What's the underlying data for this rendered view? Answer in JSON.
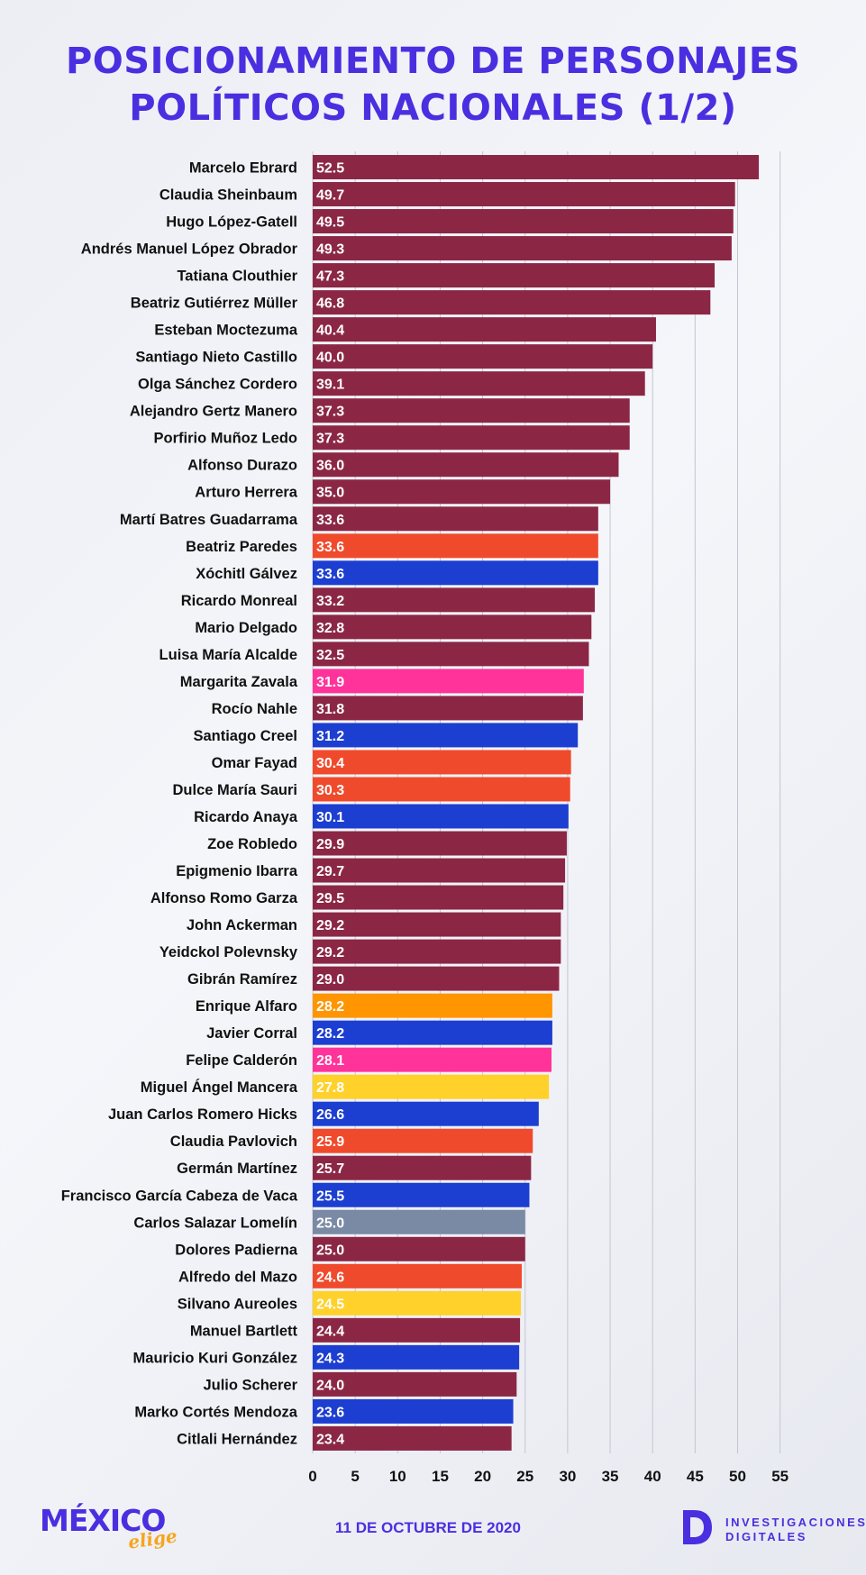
{
  "title_line1": "POSICIONAMIENTO DE PERSONAJES",
  "title_line2": "POLÍTICOS NACIONALES (1/2)",
  "footer_date": "11 DE OCTUBRE  DE 2020",
  "logo_left_word": "MÉXICO",
  "logo_left_script": "elige",
  "logo_right_mark": "D",
  "logo_right_line1": "INVESTIGACIONES",
  "logo_right_line2": "DIGITALES",
  "colors": {
    "title": "#4a2fe0",
    "default_bar": "#8b2745",
    "red": "#f04a2c",
    "blue": "#1c3ed1",
    "pink": "#ff3399",
    "orange": "#ff9500",
    "yellow": "#ffd12a",
    "gray": "#7a8aa5"
  },
  "chart_data": {
    "type": "bar",
    "orientation": "horizontal",
    "xlim": [
      0,
      55
    ],
    "xticks": [
      "0",
      "5",
      "10",
      "15",
      "20",
      "25",
      "30",
      "35",
      "40",
      "45",
      "50",
      "55"
    ],
    "grid": true,
    "categories": [
      "Marcelo Ebrard",
      "Claudia Sheinbaum",
      "Hugo López-Gatell",
      "Andrés Manuel López Obrador",
      "Tatiana Clouthier",
      "Beatriz Gutiérrez Müller",
      "Esteban Moctezuma",
      "Santiago Nieto Castillo",
      "Olga Sánchez Cordero",
      "Alejandro Gertz Manero",
      "Porfirio Muñoz Ledo",
      "Alfonso Durazo",
      "Arturo Herrera",
      "Martí Batres Guadarrama",
      "Beatriz Paredes",
      "Xóchitl Gálvez",
      "Ricardo Monreal",
      "Mario Delgado",
      "Luisa María Alcalde",
      "Margarita Zavala",
      "Rocío Nahle",
      "Santiago Creel",
      "Omar Fayad",
      "Dulce María Sauri",
      "Ricardo Anaya",
      "Zoe Robledo",
      "Epigmenio Ibarra",
      "Alfonso Romo Garza",
      "John Ackerman",
      "Yeidckol Polevnsky",
      "Gibrán Ramírez",
      "Enrique Alfaro",
      "Javier Corral",
      "Felipe Calderón",
      "Miguel Ángel Mancera",
      "Juan Carlos Romero Hicks",
      "Claudia Pavlovich",
      "Germán Martínez",
      "Francisco García Cabeza de Vaca",
      "Carlos Salazar Lomelín",
      "Dolores Padierna",
      "Alfredo del Mazo",
      "Silvano Aureoles",
      "Manuel Bartlett",
      "Mauricio Kuri González",
      "Julio Scherer",
      "Marko Cortés Mendoza",
      "Citlali Hernández"
    ],
    "values": [
      52.5,
      49.7,
      49.5,
      49.3,
      47.3,
      46.8,
      40.4,
      40.0,
      39.1,
      37.3,
      37.3,
      36.0,
      35.0,
      33.6,
      33.6,
      33.6,
      33.2,
      32.8,
      32.5,
      31.9,
      31.8,
      31.2,
      30.4,
      30.3,
      30.1,
      29.9,
      29.7,
      29.5,
      29.2,
      29.2,
      29.0,
      28.2,
      28.2,
      28.1,
      27.8,
      26.6,
      25.9,
      25.7,
      25.5,
      25.0,
      25.0,
      24.6,
      24.5,
      24.4,
      24.3,
      24.0,
      23.6,
      23.4
    ],
    "value_labels": [
      "52.5",
      "49.7",
      "49.5",
      "49.3",
      "47.3",
      "46.8",
      "40.4",
      "40.0",
      "39.1",
      "37.3",
      "37.3",
      "36.0",
      "35.0",
      "33.6",
      "33.6",
      "33.6",
      "33.2",
      "32.8",
      "32.5",
      "31.9",
      "31.8",
      "31.2",
      "30.4",
      "30.3",
      "30.1",
      "29.9",
      "29.7",
      "29.5",
      "29.2",
      "29.2",
      "29.0",
      "28.2",
      "28.2",
      "28.1",
      "27.8",
      "26.6",
      "25.9",
      "25.7",
      "25.5",
      "25.0",
      "25.0",
      "24.6",
      "24.5",
      "24.4",
      "24.3",
      "24.0",
      "23.6",
      "23.4"
    ],
    "bar_colors": [
      "#8b2745",
      "#8b2745",
      "#8b2745",
      "#8b2745",
      "#8b2745",
      "#8b2745",
      "#8b2745",
      "#8b2745",
      "#8b2745",
      "#8b2745",
      "#8b2745",
      "#8b2745",
      "#8b2745",
      "#8b2745",
      "#f04a2c",
      "#1c3ed1",
      "#8b2745",
      "#8b2745",
      "#8b2745",
      "#ff3399",
      "#8b2745",
      "#1c3ed1",
      "#f04a2c",
      "#f04a2c",
      "#1c3ed1",
      "#8b2745",
      "#8b2745",
      "#8b2745",
      "#8b2745",
      "#8b2745",
      "#8b2745",
      "#ff9500",
      "#1c3ed1",
      "#ff3399",
      "#ffd12a",
      "#1c3ed1",
      "#f04a2c",
      "#8b2745",
      "#1c3ed1",
      "#7a8aa5",
      "#8b2745",
      "#f04a2c",
      "#ffd12a",
      "#8b2745",
      "#1c3ed1",
      "#8b2745",
      "#1c3ed1",
      "#8b2745"
    ]
  }
}
